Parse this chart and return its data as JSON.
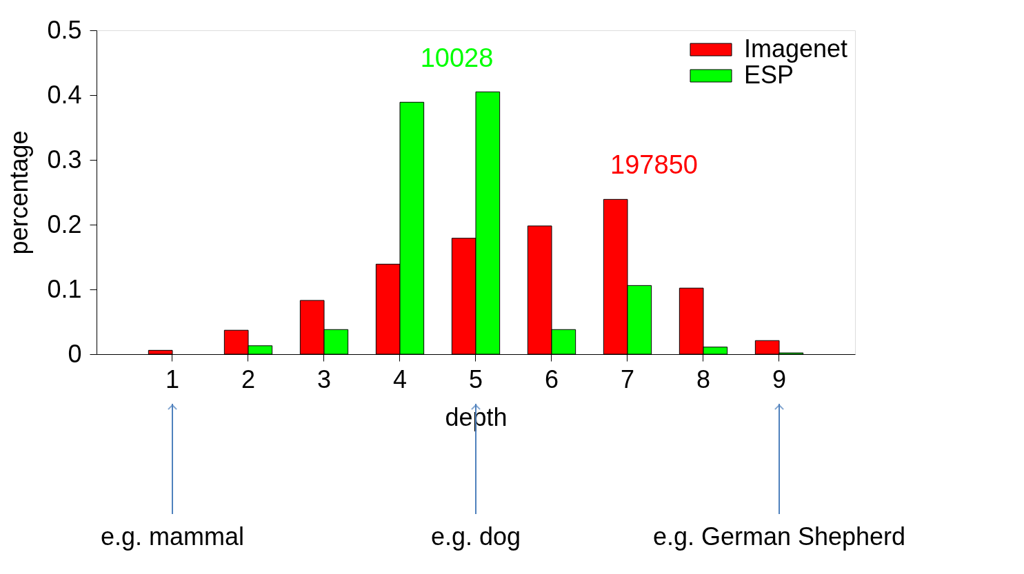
{
  "chart_data": {
    "type": "bar",
    "xlabel": "depth",
    "ylabel": "percentage",
    "categories": [
      "1",
      "2",
      "3",
      "4",
      "5",
      "6",
      "7",
      "8",
      "9"
    ],
    "series": [
      {
        "name": "Imagenet",
        "color": "#ff0000",
        "values": [
          0.006,
          0.037,
          0.083,
          0.139,
          0.179,
          0.198,
          0.239,
          0.102,
          0.021
        ]
      },
      {
        "name": "ESP",
        "color": "#00ff00",
        "values": [
          0,
          0.013,
          0.038,
          0.389,
          0.405,
          0.038,
          0.106,
          0.011,
          0.002
        ]
      }
    ],
    "ylim": [
      0,
      0.5
    ],
    "yticks": [
      0,
      0.1,
      0.2,
      0.3,
      0.4,
      0.5
    ],
    "grid": false,
    "legend": "top right",
    "annotations": [
      "197850",
      "10028",
      "e.g. mammal",
      "e.g. dog",
      "e.g. German Shepherd"
    ]
  }
}
